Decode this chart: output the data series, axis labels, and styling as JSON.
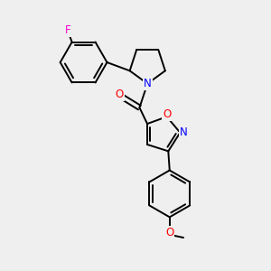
{
  "bg_color": "#efefef",
  "bond_color": "#000000",
  "bond_width": 1.4,
  "font_size": 8.5,
  "atom_colors": {
    "F": "#ff00cc",
    "N": "#0000ff",
    "O": "#ff0000"
  }
}
